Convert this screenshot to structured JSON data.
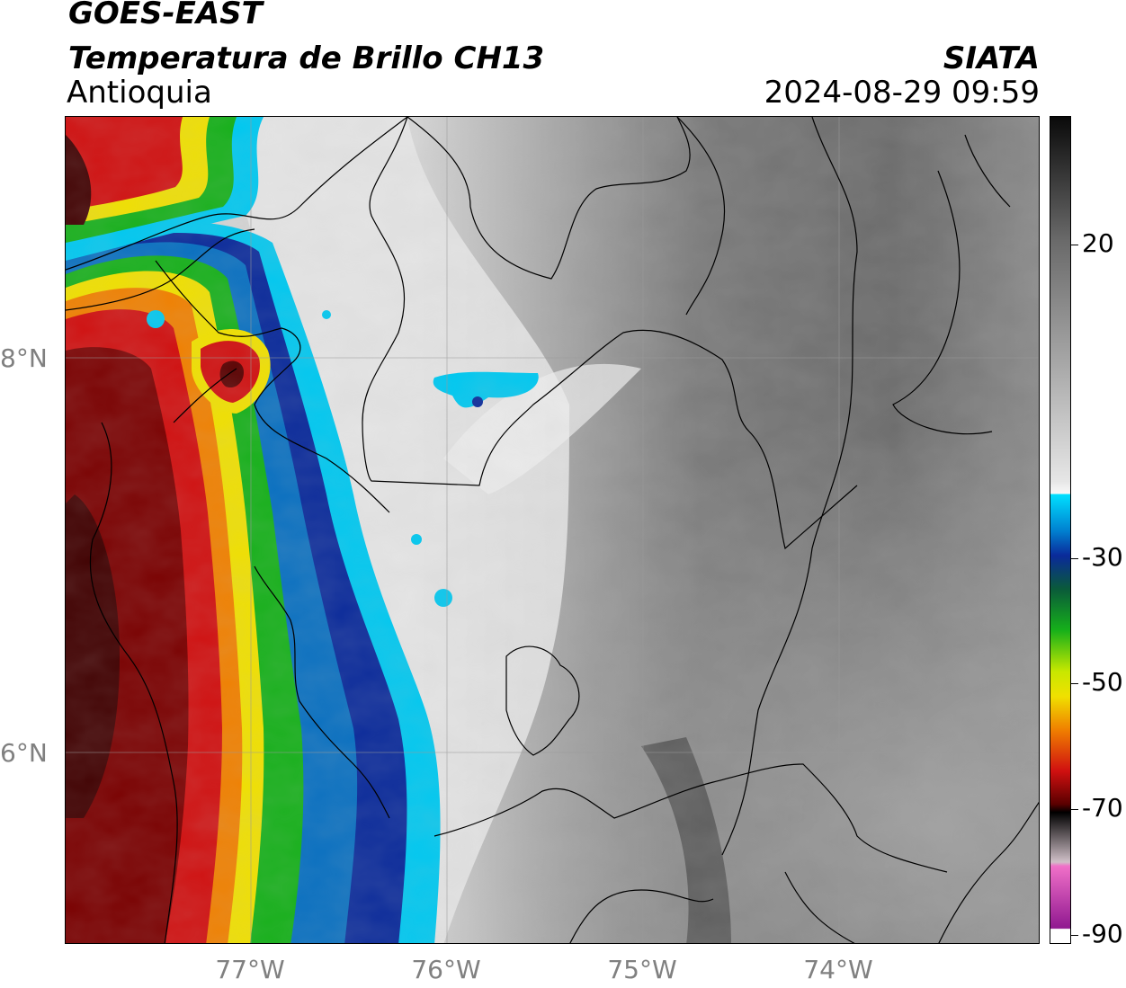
{
  "header": {
    "title_line1": "GOES-EAST",
    "title_line2": "Temperatura de Brillo CH13",
    "subtitle": "Antioquia",
    "source": "SIATA",
    "datetime": "2024-08-29 09:59"
  },
  "map": {
    "latitude_labels": [
      "8°N",
      "6°N"
    ],
    "longitude_labels": [
      "77°W",
      "76°W",
      "75°W",
      "74°W"
    ],
    "grid": true,
    "features": [
      "country-borders",
      "department-borders",
      "coastline"
    ]
  },
  "colorbar": {
    "tick_labels": [
      "20",
      "-30",
      "-50",
      "-70",
      "-90"
    ],
    "colors": {
      "warm_gray_dark": "#111111",
      "white": "#f5f5f5",
      "cyan": "#00c8f0",
      "blue": "#0a2a9a",
      "green": "#16b01a",
      "yellow": "#f0e000",
      "orange": "#f08000",
      "red": "#d01010",
      "dark_red": "#400000",
      "pink": "#f060c0",
      "purple": "#901890"
    }
  }
}
